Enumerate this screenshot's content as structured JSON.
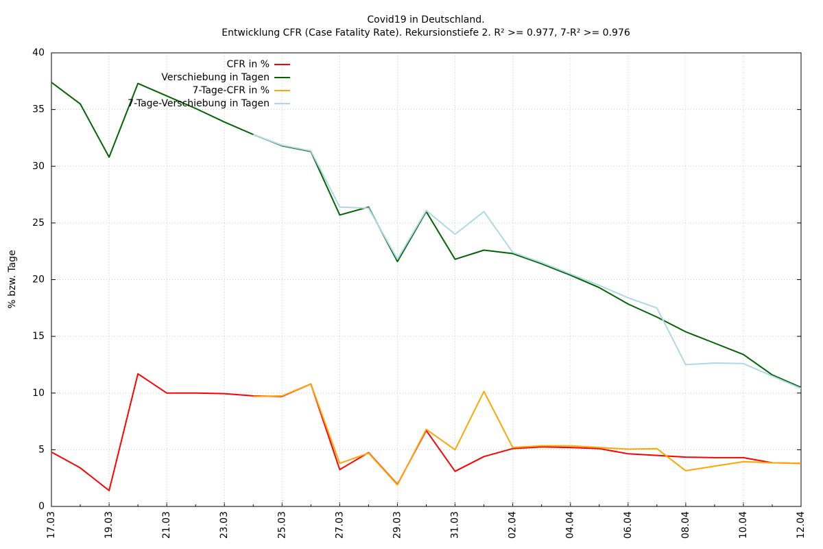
{
  "chart_data": {
    "type": "line",
    "title": "Covid19 in Deutschland.",
    "subtitle": "Entwicklung CFR (Case Fatality Rate). Rekursionstiefe 2. R² >= 0.977, 7-R² >= 0.976",
    "y_label": "% bzw. Tage",
    "categories": [
      "17.03",
      null,
      "19.03",
      null,
      "21.03",
      null,
      "23.03",
      null,
      "25.03",
      null,
      "27.03",
      null,
      "29.03",
      null,
      "31.03",
      null,
      "02.04",
      null,
      "04.04",
      null,
      "06.04",
      null,
      "08.04",
      null,
      "10.04",
      null,
      "12.04"
    ],
    "ylim": [
      0,
      40
    ],
    "yticks": [
      0,
      5,
      10,
      15,
      20,
      25,
      30,
      35,
      40
    ],
    "grid": true,
    "legend": "top-left",
    "series": [
      {
        "name": "CFR in %",
        "color": "#ff0000",
        "values": [
          4.8,
          3.4,
          1.4,
          11.7,
          10.0,
          10.0,
          9.95,
          9.75,
          9.7,
          10.8,
          3.25,
          4.75,
          1.95,
          6.7,
          3.1,
          4.4,
          5.1,
          5.25,
          5.2,
          5.1,
          4.65,
          4.5,
          4.35,
          4.3,
          4.3,
          3.85,
          3.8
        ]
      },
      {
        "name": "Verschiebung in Tagen",
        "color": "#006400",
        "values": [
          37.4,
          35.5,
          30.8,
          37.3,
          36.2,
          35.1,
          33.9,
          32.8,
          31.8,
          31.3,
          25.7,
          26.4,
          21.6,
          26.0,
          21.8,
          22.6,
          22.3,
          21.4,
          20.4,
          19.3,
          17.85,
          16.7,
          15.4,
          14.4,
          13.4,
          11.6,
          10.5
        ]
      },
      {
        "name": "7-Tage-CFR in %",
        "color": "#ffa500",
        "values": [
          null,
          null,
          null,
          null,
          null,
          null,
          null,
          9.7,
          9.75,
          10.8,
          3.8,
          4.7,
          1.9,
          6.8,
          5.0,
          10.15,
          5.2,
          5.35,
          5.35,
          5.2,
          5.05,
          5.1,
          3.15,
          3.55,
          3.95,
          3.85,
          3.8
        ]
      },
      {
        "name": "7-Tage-Verschiebung in Tagen",
        "color": "#add8e6",
        "values": [
          null,
          null,
          null,
          null,
          null,
          null,
          null,
          32.8,
          31.85,
          31.35,
          26.4,
          26.3,
          21.8,
          26.1,
          24.0,
          26.0,
          22.4,
          21.5,
          20.5,
          19.5,
          18.4,
          17.5,
          12.5,
          12.65,
          12.6,
          11.5,
          10.4
        ]
      }
    ]
  }
}
